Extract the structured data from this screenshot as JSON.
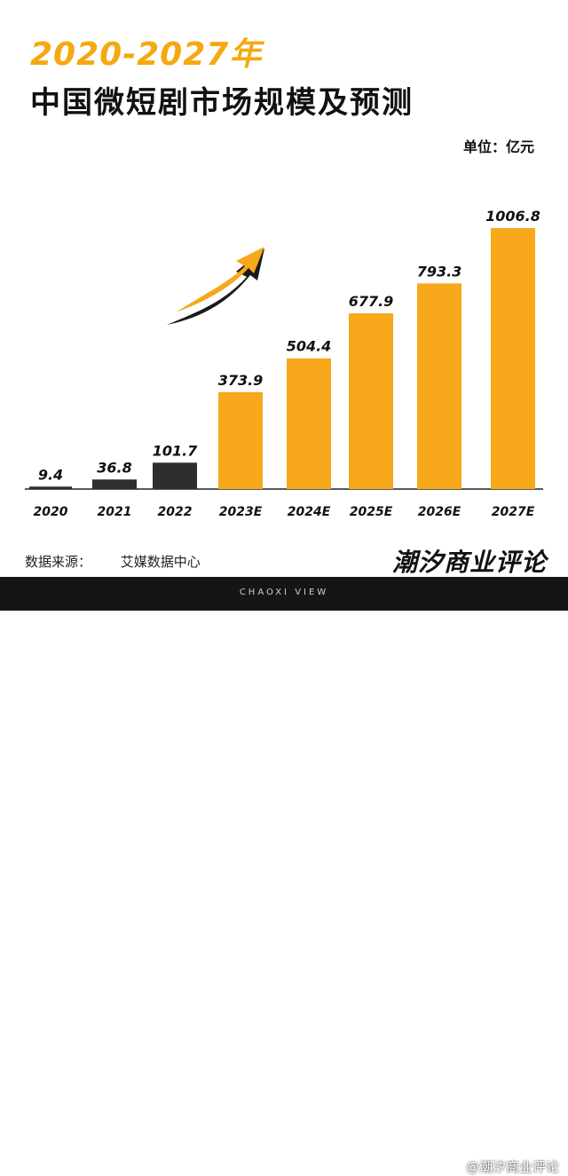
{
  "header": {
    "year_range": "2020-2027年",
    "title": "中国微短剧市场规模及预测",
    "unit": "单位：亿元"
  },
  "chart_data": {
    "type": "bar",
    "title": "中国微短剧市场规模及预测",
    "categories": [
      "2020",
      "2021",
      "2022",
      "2023E",
      "2024E",
      "2025E",
      "2026E",
      "2027E"
    ],
    "values": [
      9.4,
      36.8,
      101.7,
      373.9,
      504.4,
      677.9,
      793.3,
      1006.8
    ],
    "value_labels": [
      "9.4",
      "36.8",
      "101.7",
      "373.9",
      "504.4",
      "677.9",
      "793.3",
      "1006.8"
    ],
    "ylim": [
      0,
      1006.8
    ],
    "grid": false,
    "colors": {
      "actual": "#2e2e2e",
      "forecast": "#f7a81b"
    },
    "forecast_start_index": 3
  },
  "footer": {
    "source_label": "数据来源：",
    "source_value": "艾媒数据中心",
    "brand": "潮汐商业评论",
    "tagline": "CHAOXI VIEW",
    "watermark": "@潮汐商业评论"
  },
  "decor": {
    "arrow_icon": "trend-up-arrow-icon",
    "arrow_colors": [
      "#f7a81b",
      "#1a1a1a"
    ]
  }
}
